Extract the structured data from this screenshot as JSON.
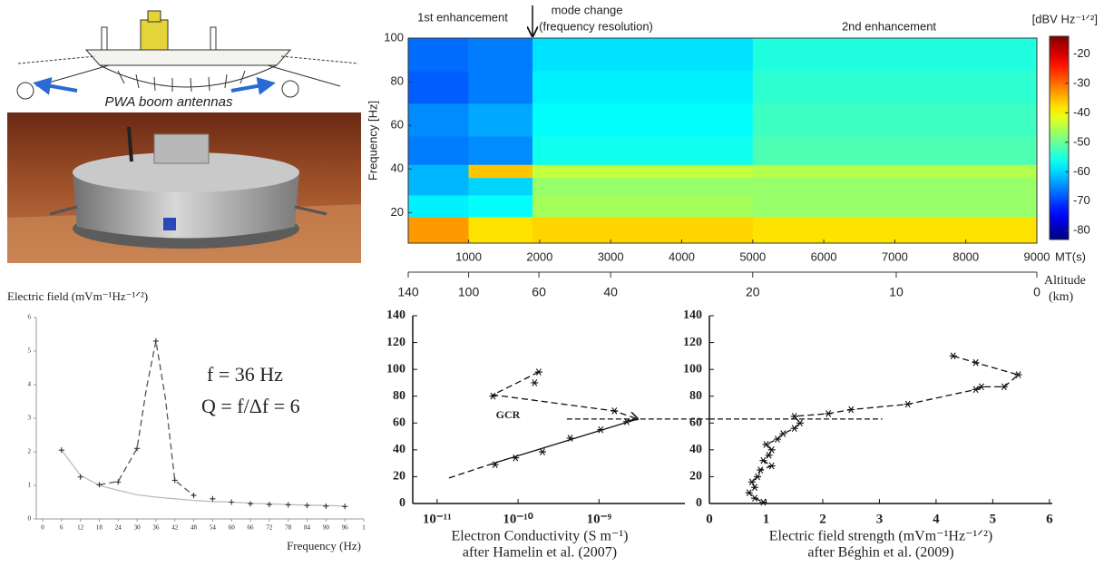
{
  "figure": {
    "diagram_label": "PWA boom antennas"
  },
  "chart_data": [
    {
      "type": "heatmap",
      "annotations": [
        "1st enhancement",
        "mode change",
        "(frequency resolution)",
        "2nd enhancement"
      ],
      "mode_change_x": 1900,
      "ylabel": "Frequency [Hz]",
      "xlabel": "MT(s)",
      "colorbar_label": "[dBV Hz⁻¹ᐟ²]",
      "xlim": [
        150,
        9000
      ],
      "ylim": [
        6,
        100
      ],
      "xticks": [
        1000,
        2000,
        3000,
        4000,
        5000,
        6000,
        7000,
        8000,
        9000
      ],
      "yticks": [
        20,
        40,
        60,
        80,
        100
      ],
      "x_edges": [
        150,
        1000,
        1900,
        5000,
        9000
      ],
      "y_edges": [
        6,
        18,
        28,
        36,
        42,
        55,
        70,
        85,
        100
      ],
      "z": [
        [
          -33,
          -38,
          -37,
          -38
        ],
        [
          -58,
          -57,
          -46,
          -47
        ],
        [
          -62,
          -60,
          -47,
          -47
        ],
        [
          -62,
          -36,
          -44,
          -45
        ],
        [
          -66,
          -65,
          -56,
          -52
        ],
        [
          -65,
          -63,
          -57,
          -53
        ],
        [
          -68,
          -66,
          -58,
          -54
        ],
        [
          -67,
          -66,
          -59,
          -55
        ]
      ],
      "colormap": "jet",
      "clim": [
        -83,
        -14
      ],
      "cticks": [
        -80,
        -70,
        -60,
        -50,
        -40,
        -30,
        -20
      ],
      "x2label": "Altitude",
      "x2unit": "(km)",
      "x2ticks": [
        {
          "value": 150,
          "label": "140"
        },
        {
          "value": 1000,
          "label": "100"
        },
        {
          "value": 1990,
          "label": "60"
        },
        {
          "value": 3000,
          "label": "40"
        },
        {
          "value": 5000,
          "label": "20"
        },
        {
          "value": 7020,
          "label": "10"
        },
        {
          "value": 9000,
          "label": "0"
        }
      ]
    },
    {
      "type": "line",
      "title": "Electric field (mVm⁻¹Hz⁻¹ᐟ²)",
      "xlabel": "Frequency (Hz)",
      "annotations": [
        "f = 36 Hz",
        "Q = f/Δf = 6"
      ],
      "xlim": [
        -2,
        102
      ],
      "ylim": [
        0,
        6
      ],
      "xticks": [
        0,
        6,
        12,
        18,
        24,
        30,
        36,
        42,
        48,
        54,
        60,
        66,
        72,
        78,
        84,
        90,
        96,
        {
          "value": 102,
          "label": "1"
        }
      ],
      "yticks": [
        0,
        1,
        2,
        3,
        4,
        5,
        6
      ],
      "series": [
        {
          "color": "#bbbbbb",
          "style": "solid",
          "x": [
            6,
            12,
            18,
            24,
            30,
            36,
            42,
            48,
            54,
            60,
            66,
            72,
            78,
            84,
            90,
            96
          ],
          "values": [
            2.05,
            1.3,
            1.0,
            0.85,
            0.72,
            0.65,
            0.6,
            0.55,
            0.52,
            0.5,
            0.47,
            0.45,
            0.43,
            0.41,
            0.4,
            0.38
          ]
        },
        {
          "color": "#555555",
          "style": "dashed",
          "x": [
            18,
            24,
            30,
            33,
            36,
            39,
            42,
            48
          ],
          "values": [
            1.02,
            1.12,
            2.1,
            3.9,
            5.3,
            3.6,
            1.15,
            0.7
          ]
        },
        {
          "color": "#333333",
          "style": "markers",
          "marker": "+",
          "x": [
            6,
            12,
            18,
            24,
            30,
            36,
            42,
            48,
            54,
            60,
            66,
            72,
            78,
            84,
            90,
            96
          ],
          "values": [
            2.05,
            1.25,
            1.02,
            1.1,
            2.1,
            5.3,
            1.15,
            0.7,
            0.6,
            0.5,
            0.45,
            0.43,
            0.42,
            0.4,
            0.38,
            0.37
          ]
        }
      ]
    },
    {
      "type": "line",
      "xscale": "log",
      "xlabel": "Electron Conductivity (S m⁻¹)",
      "source": "after Hamelin et al. (2007)",
      "annotations": [
        "GCR"
      ],
      "xlim": [
        5e-12,
        1.15e-08
      ],
      "ylim": [
        0,
        140
      ],
      "xticks": [
        {
          "value": 1e-11,
          "label": "10⁻¹¹"
        },
        {
          "value": 1e-10,
          "label": "10⁻¹⁰"
        },
        {
          "value": 1e-09,
          "label": "10⁻⁹"
        }
      ],
      "yticks": [
        0,
        20,
        40,
        60,
        80,
        100,
        120,
        140
      ],
      "reference_line": {
        "value": 63,
        "x_start": 4e-10
      },
      "series": [
        {
          "color": "#111111",
          "style": "markers",
          "marker": "*",
          "x": [
            5.2e-11,
            9.3e-11,
            2e-10,
            4.4e-10,
            1.05e-09,
            2.2e-09,
            1.55e-09,
            4.9e-11,
            1.6e-10,
            1.8e-10
          ],
          "values": [
            29,
            34,
            38.5,
            48.7,
            55,
            61,
            69,
            80,
            90,
            98
          ]
        },
        {
          "color": "#111111",
          "style": "solid",
          "x": [
            5e-11,
            3e-09
          ],
          "values": [
            30,
            63
          ]
        },
        {
          "color": "#111111",
          "style": "dashed",
          "x": [
            1.4e-11,
            5e-11
          ],
          "values": [
            19,
            30
          ]
        },
        {
          "color": "#111111",
          "style": "dashed",
          "arrow": true,
          "x": [
            1.8e-10,
            4.9e-11,
            1.55e-09,
            3e-09
          ],
          "values": [
            98,
            81,
            69,
            63
          ]
        }
      ]
    },
    {
      "type": "line",
      "xlabel": "Electric field strength (mVm⁻¹Hz⁻¹ᐟ²)",
      "source": "after Béghin et al. (2009)",
      "xlim": [
        0,
        6.05
      ],
      "ylim": [
        0,
        140
      ],
      "xticks": [
        0,
        1,
        2,
        3,
        4,
        5,
        6
      ],
      "yticks": [
        0,
        20,
        40,
        60,
        80,
        100,
        120,
        140
      ],
      "reference_line": {
        "value": 63,
        "x_end": 3.05
      },
      "series": [
        {
          "color": "#111111",
          "style": "dashed",
          "marker": "*",
          "x": [
            4.3,
            4.7,
            5.45,
            5.2,
            4.8,
            4.7,
            3.5,
            2.5,
            2.1,
            1.5,
            1.6,
            1.5,
            1.3,
            1.2,
            1.0,
            1.1,
            1.05,
            0.95,
            1.1,
            0.9,
            0.85,
            0.75,
            0.8,
            0.7,
            0.8,
            0.95
          ],
          "values": [
            110,
            105,
            96,
            87,
            87,
            85,
            74,
            70,
            67,
            65,
            60,
            56,
            52,
            48,
            44,
            40,
            36,
            32,
            28,
            25,
            20,
            16,
            12,
            8,
            4,
            1
          ]
        }
      ]
    }
  ]
}
